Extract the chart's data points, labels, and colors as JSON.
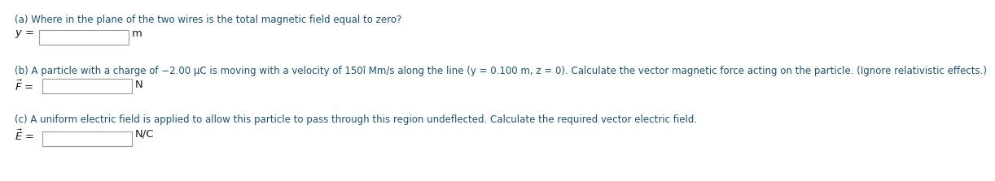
{
  "bg_color": "#ffffff",
  "text_color": "#1a1a1a",
  "link_color": "#1a5276",
  "part_a_label": "(a) Where in the plane of the two wires is the total magnetic field equal to zero?",
  "part_b_label": "(b) A particle with a charge of −2.00 μC is moving with a velocity of 150î Mm/s along the line (y = 0.100 m, z = 0). Calculate the vector magnetic force acting on the particle. (Ignore relativistic effects.)",
  "part_c_label": "(c) A uniform electric field is applied to allow this particle to pass through this region undeflected. Calculate the required vector electric field.",
  "font_size_label": 8.5,
  "font_size_var": 9.5,
  "font_size_unit": 9.5,
  "box_color": "#ffffff",
  "box_edge_color": "#999999"
}
